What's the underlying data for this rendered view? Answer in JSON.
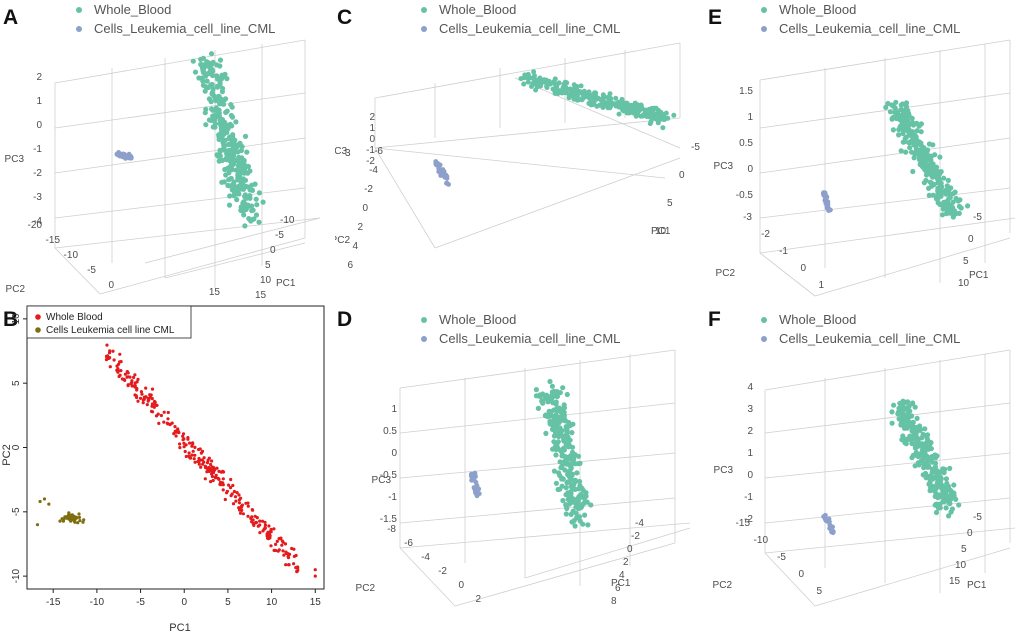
{
  "colors": {
    "whole_blood_3d": "#66c2a5",
    "cml_3d": "#8da0cb",
    "whole_blood_2d": "#e41a1c",
    "cml_2d": "#7f6e0f",
    "grid": "#cfcfcf",
    "axis_text": "#4d4d4d"
  },
  "legend_3d": {
    "series1": "Whole_Blood",
    "series2": "Cells_Leukemia_cell_line_CML"
  },
  "chart_data": [
    {
      "panel": "A",
      "type": "scatter3d",
      "projection": "front-left",
      "axes": {
        "x": "PC1",
        "y": "PC2",
        "z": "PC3"
      },
      "pc3_ticks": [
        "2",
        "1",
        "0",
        "-1",
        "-2",
        "-3",
        "-4"
      ],
      "pc2_ticks": [
        "-20",
        "-15",
        "-10",
        "-5",
        "0"
      ],
      "pc1_ticks": [
        "-10",
        "-5",
        "0",
        "5",
        "10",
        "15"
      ],
      "pc2_extra": "15",
      "series": [
        {
          "name": "Whole_Blood",
          "count": 300,
          "pc1_range": [
            -10,
            15
          ],
          "pc2_range": [
            -5,
            10
          ],
          "pc3_range": [
            -4,
            2
          ]
        },
        {
          "name": "Cells_Leukemia_cell_line_CML",
          "count": 40,
          "pc1_center": -13,
          "pc2_center": -5,
          "pc3_center": -1
        }
      ]
    },
    {
      "panel": "B",
      "type": "scatter",
      "xlabel": "PC1",
      "ylabel": "PC2",
      "xlim": [
        -18,
        16
      ],
      "ylim": [
        -11,
        11
      ],
      "xticks": [
        -15,
        -10,
        -5,
        0,
        5,
        10,
        15
      ],
      "yticks": [
        -10,
        -5,
        0,
        5,
        10
      ],
      "legend": [
        "Whole Blood",
        "Cells Leukemia cell line CML"
      ],
      "legend_position": "top-left",
      "series": [
        {
          "name": "Whole Blood",
          "count": 300,
          "trend": "y = -0.75x + 0.5",
          "x_range": [
            -9,
            15
          ],
          "outliers": [
            [
              15,
              -9.5
            ],
            [
              15,
              -10
            ]
          ]
        },
        {
          "name": "Cells Leukemia cell line CML",
          "count": 45,
          "x_range": [
            -16.5,
            -11
          ],
          "y_center": -5.5
        }
      ]
    },
    {
      "panel": "C",
      "type": "scatter3d",
      "projection": "top-down",
      "axes": {
        "x": "PC1",
        "y": "PC2",
        "z": "PC3"
      },
      "pc3_ticks": [
        "2",
        "1",
        "0",
        "-1",
        "-2"
      ],
      "pc2_ticks": [
        "-6",
        "-4",
        "-2",
        "0",
        "2",
        "4",
        "6"
      ],
      "pc1_ticks": [
        "-5",
        "0",
        "5",
        "10"
      ],
      "pc3_label_partial": "3"
    },
    {
      "panel": "D",
      "type": "scatter3d",
      "projection": "front-left",
      "axes": {
        "x": "PC1",
        "y": "PC2",
        "z": "PC3"
      },
      "pc3_ticks": [
        "1",
        "0.5",
        "0",
        "-0.5",
        "-1",
        "-1.5"
      ],
      "pc2_ticks": [
        "-8",
        "-6",
        "-4",
        "-2",
        "0",
        "2"
      ],
      "pc1_ticks": [
        "-4",
        "-2",
        "0",
        "2",
        "4",
        "6",
        "8"
      ]
    },
    {
      "panel": "E",
      "type": "scatter3d",
      "projection": "front-left",
      "axes": {
        "x": "PC1",
        "y": "PC2",
        "z": "PC3"
      },
      "pc3_ticks": [
        "1.5",
        "1",
        "0.5",
        "0",
        "-0.5"
      ],
      "pc2_ticks": [
        "-3",
        "-2",
        "-1",
        "0",
        "1"
      ],
      "pc1_ticks": [
        "-5",
        "0",
        "5",
        "10"
      ]
    },
    {
      "panel": "F",
      "type": "scatter3d",
      "projection": "front-left",
      "axes": {
        "x": "PC1",
        "y": "PC2",
        "z": "PC3"
      },
      "pc3_ticks": [
        "4",
        "3",
        "2",
        "1",
        "0",
        "-1",
        "-2"
      ],
      "pc2_ticks": [
        "-15",
        "-10",
        "-5",
        "0",
        "5"
      ],
      "pc1_ticks": [
        "-5",
        "0",
        "5",
        "10",
        "15"
      ]
    }
  ]
}
